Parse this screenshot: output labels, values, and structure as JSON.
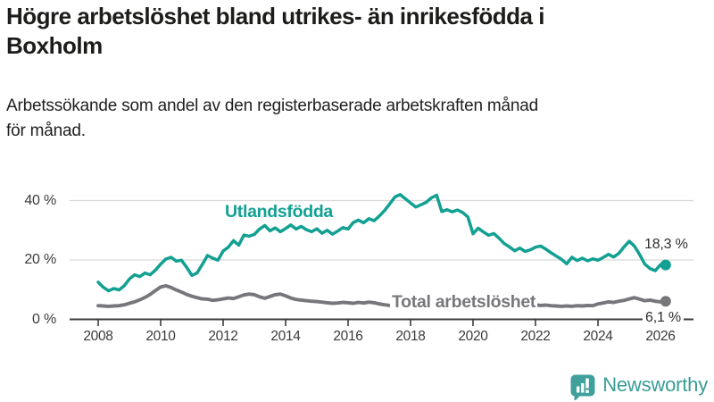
{
  "header": {
    "title": "Högre arbetslöshet bland utrikes- än inrikesfödda i\nBoxholm",
    "subtitle": "Arbetssökande som andel av den registerbaserade arbetskraften månad\nför månad."
  },
  "chart_data": {
    "type": "line",
    "title": "Högre arbetslöshet bland utrikes- än inrikesfödda i Boxholm",
    "subtitle": "Arbetssökande som andel av den registerbaserade arbetskraften månad för månad.",
    "x_unit": "year (monthly values, sampled every 2 months)",
    "x_start": 2008.0,
    "x_step": 0.1666667,
    "x_end": 2026.17,
    "x_ticks": [
      2008,
      2010,
      2012,
      2014,
      2016,
      2018,
      2020,
      2022,
      2024,
      2026
    ],
    "y_ticks": [
      {
        "value": 0,
        "label": "0 %"
      },
      {
        "value": 20,
        "label": "20 %"
      },
      {
        "value": 40,
        "label": "40 %"
      }
    ],
    "ylim": [
      0,
      45
    ],
    "grid": "horizontal",
    "axis_color": "#3c3c3c",
    "grid_color": "#d9d9d9",
    "series": [
      {
        "name": "Utlandsfödda",
        "color": "#12a092",
        "end_label": "18,3 %",
        "end_value": 18.3,
        "values": [
          12.5,
          10.8,
          9.6,
          10.4,
          9.9,
          11.3,
          13.6,
          15.0,
          14.4,
          15.6,
          15.0,
          16.6,
          18.6,
          20.3,
          20.9,
          19.6,
          19.9,
          17.5,
          14.8,
          15.6,
          18.5,
          21.5,
          20.6,
          19.9,
          23.0,
          24.3,
          26.5,
          25.0,
          28.4,
          28.0,
          28.6,
          30.4,
          31.6,
          29.8,
          30.8,
          29.5,
          30.6,
          31.8,
          30.4,
          31.3,
          30.2,
          29.5,
          30.5,
          29.0,
          30.0,
          28.7,
          29.7,
          30.9,
          30.4,
          32.6,
          33.4,
          32.5,
          33.9,
          33.2,
          34.8,
          36.6,
          38.9,
          41.2,
          42.0,
          40.6,
          39.2,
          37.8,
          38.6,
          39.4,
          40.9,
          41.8,
          36.3,
          36.9,
          36.2,
          36.8,
          36.0,
          34.5,
          28.8,
          30.7,
          29.4,
          28.3,
          28.9,
          27.3,
          25.5,
          24.4,
          23.1,
          24.0,
          22.9,
          23.4,
          24.3,
          24.7,
          23.6,
          22.4,
          21.3,
          20.2,
          18.7,
          20.9,
          19.8,
          20.6,
          19.7,
          20.4,
          19.9,
          20.8,
          21.9,
          21.0,
          22.2,
          24.4,
          26.3,
          24.7,
          21.8,
          18.6,
          17.1,
          16.4,
          18.4,
          18.3
        ]
      },
      {
        "name": "Total arbetslöshet",
        "color": "#77777b",
        "end_label": "6,1 %",
        "end_value": 6.1,
        "values": [
          4.6,
          4.5,
          4.4,
          4.5,
          4.6,
          4.9,
          5.4,
          5.9,
          6.6,
          7.4,
          8.4,
          9.7,
          10.9,
          11.3,
          10.7,
          9.9,
          9.2,
          8.4,
          7.8,
          7.3,
          6.9,
          6.8,
          6.4,
          6.6,
          6.9,
          7.2,
          7.0,
          7.6,
          8.2,
          8.5,
          8.3,
          7.6,
          7.1,
          7.7,
          8.3,
          8.5,
          7.9,
          7.2,
          6.7,
          6.5,
          6.3,
          6.1,
          6.0,
          5.8,
          5.6,
          5.4,
          5.5,
          5.7,
          5.6,
          5.4,
          5.7,
          5.5,
          5.8,
          5.6,
          5.2,
          4.9,
          4.7,
          4.5,
          4.8,
          5.0,
          4.9,
          5.2,
          5.0,
          5.3,
          5.1,
          5.4,
          5.2,
          5.0,
          5.3,
          5.5,
          5.3,
          5.6,
          5.9,
          6.6,
          6.9,
          6.7,
          6.4,
          6.2,
          6.0,
          5.8,
          5.6,
          5.4,
          5.2,
          5.0,
          4.9,
          4.7,
          4.8,
          4.6,
          4.5,
          4.4,
          4.5,
          4.4,
          4.6,
          4.5,
          4.7,
          4.6,
          5.2,
          5.5,
          5.9,
          5.7,
          6.1,
          6.4,
          6.9,
          7.3,
          6.8,
          6.3,
          6.5,
          6.1,
          5.9,
          6.1
        ]
      }
    ],
    "legend_position": "inline-labels"
  },
  "footer": {
    "brand": "Newsworthy",
    "brand_color": "#389c97",
    "logo_icon": "bar-chart-speech-bubble-icon"
  }
}
